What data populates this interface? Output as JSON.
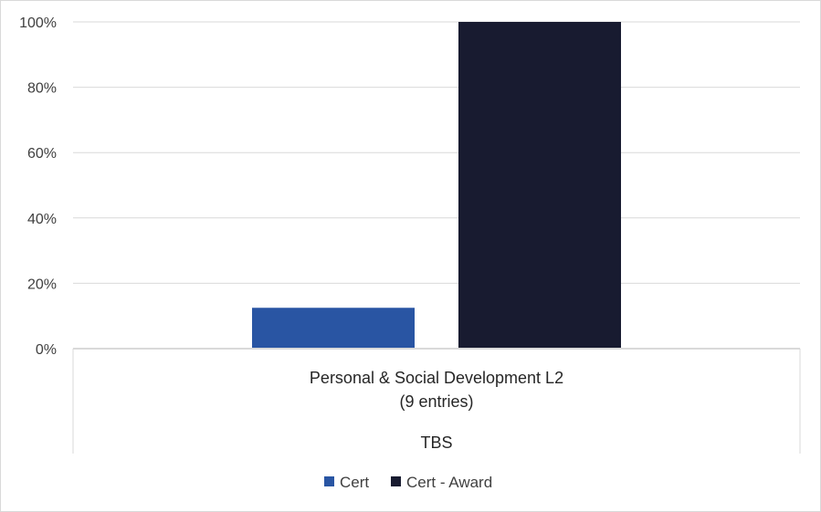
{
  "chart_data": {
    "type": "bar",
    "title": "",
    "xlabel": "",
    "ylabel": "",
    "ylim": [
      0,
      100
    ],
    "yticks": [
      "0%",
      "20%",
      "40%",
      "60%",
      "80%",
      "100%"
    ],
    "ytick_values": [
      0,
      20,
      40,
      60,
      80,
      100
    ],
    "categories": [
      "Personal & Social Development L2"
    ],
    "category_sub": "(9 entries)",
    "group_label": "TBS",
    "series": [
      {
        "name": "Cert",
        "values": [
          12.5
        ],
        "color": "#2955a3"
      },
      {
        "name": "Cert - Award",
        "values": [
          100
        ],
        "color": "#181b30"
      }
    ],
    "grid": true,
    "legend": "bottom"
  }
}
